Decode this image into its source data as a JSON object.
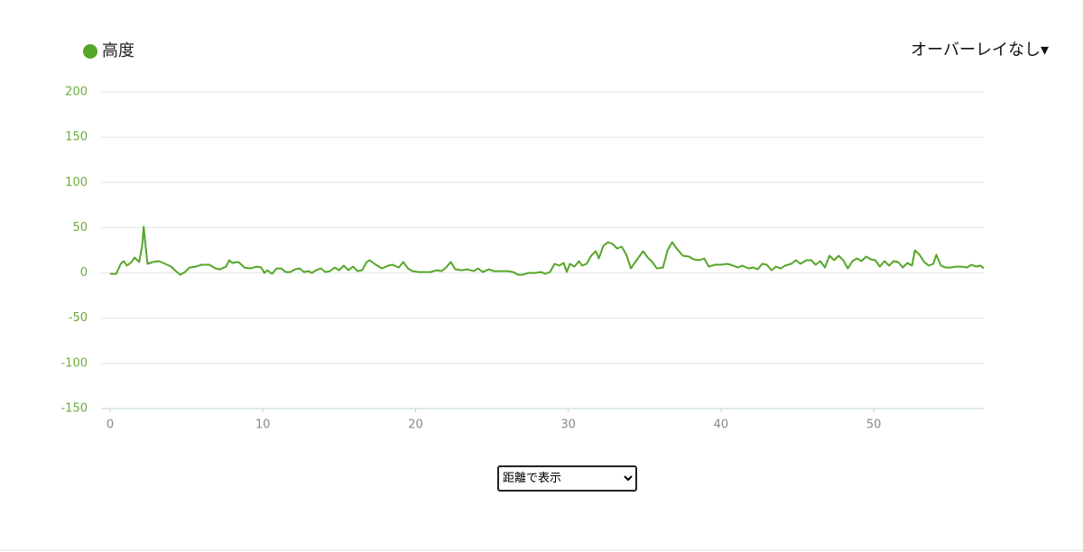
{
  "overlay_menu": "オーバーレイなし▾",
  "view_select": "距離で表示",
  "chart_data": {
    "type": "line",
    "x": [
      0,
      0.4,
      0.7,
      0.9,
      1.1,
      1.4,
      1.6,
      1.9,
      2.1,
      2.2,
      2.35,
      2.45,
      2.8,
      3.2,
      3.6,
      4.0,
      4.3,
      4.6,
      4.9,
      5.2,
      5.6,
      6.0,
      6.5,
      6.9,
      7.2,
      7.6,
      7.8,
      8.0,
      8.4,
      8.8,
      9.2,
      9.6,
      9.9,
      10.1,
      10.3,
      10.6,
      10.9,
      11.2,
      11.5,
      11.8,
      12.1,
      12.4,
      12.7,
      13.0,
      13.2,
      13.5,
      13.8,
      14.1,
      14.4,
      14.7,
      15.0,
      15.3,
      15.6,
      15.9,
      16.2,
      16.5,
      16.8,
      17.0,
      17.4,
      17.8,
      18.2,
      18.5,
      18.9,
      19.2,
      19.5,
      19.8,
      20.2,
      20.6,
      21.0,
      21.4,
      21.7,
      22.0,
      22.3,
      22.6,
      23.0,
      23.4,
      23.8,
      24.1,
      24.4,
      24.8,
      25.1,
      25.6,
      26.0,
      26.4,
      26.7,
      27.0,
      27.4,
      27.8,
      28.2,
      28.5,
      28.8,
      29.1,
      29.4,
      29.7,
      29.9,
      30.1,
      30.4,
      30.7,
      30.9,
      31.2,
      31.5,
      31.8,
      32.0,
      32.3,
      32.6,
      32.9,
      33.2,
      33.5,
      33.8,
      34.1,
      34.3,
      34.6,
      34.9,
      35.2,
      35.5,
      35.8,
      36.2,
      36.5,
      36.8,
      37.1,
      37.5,
      37.9,
      38.2,
      38.6,
      38.9,
      39.2,
      39.6,
      40.0,
      40.4,
      40.8,
      41.1,
      41.4,
      41.8,
      42.1,
      42.4,
      42.7,
      43.0,
      43.3,
      43.6,
      43.9,
      44.2,
      44.6,
      44.9,
      45.2,
      45.6,
      45.9,
      46.2,
      46.5,
      46.8,
      47.1,
      47.4,
      47.7,
      48.0,
      48.3,
      48.6,
      48.9,
      49.2,
      49.5,
      49.8,
      50.1,
      50.4,
      50.7,
      51.0,
      51.3,
      51.6,
      51.9,
      52.2,
      52.5,
      52.7,
      53.0,
      53.3,
      53.6,
      53.9,
      54.1,
      54.4,
      54.7,
      55.0,
      55.4,
      55.8,
      56.1,
      56.4,
      56.7,
      57.0,
      57.2
    ],
    "series": [
      {
        "name": "高度",
        "color": "#55a629",
        "values": [
          -1,
          -1,
          10,
          13,
          8,
          12,
          17,
          12,
          30,
          51,
          25,
          10,
          12,
          13,
          10,
          7,
          2,
          -2,
          1,
          6,
          7,
          9,
          9,
          5,
          4,
          7,
          14,
          11,
          12,
          6,
          5,
          7,
          6,
          0,
          3,
          -1,
          5,
          5,
          1,
          1,
          4,
          5,
          1,
          2,
          0,
          3,
          5,
          1,
          2,
          6,
          3,
          8,
          3,
          7,
          2,
          3,
          12,
          14,
          9,
          5,
          8,
          9,
          6,
          12,
          5,
          2,
          1,
          1,
          1,
          3,
          2,
          6,
          12,
          4,
          3,
          4,
          2,
          5,
          1,
          4,
          2,
          2,
          2,
          1,
          -2,
          -2,
          0,
          0,
          1,
          -1,
          1,
          10,
          8,
          11,
          1,
          10,
          7,
          13,
          8,
          10,
          19,
          24,
          16,
          30,
          34,
          32,
          27,
          29,
          20,
          5,
          10,
          17,
          24,
          17,
          12,
          5,
          6,
          25,
          34,
          27,
          19,
          18,
          15,
          14,
          16,
          7,
          9,
          9,
          10,
          8,
          6,
          8,
          5,
          6,
          4,
          10,
          9,
          3,
          7,
          5,
          8,
          10,
          14,
          10,
          14,
          14,
          9,
          13,
          6,
          19,
          14,
          19,
          14,
          5,
          13,
          16,
          13,
          18,
          15,
          14,
          7,
          13,
          8,
          13,
          12,
          6,
          11,
          8,
          25,
          20,
          12,
          8,
          10,
          20,
          8,
          6,
          6,
          7,
          7,
          6,
          9,
          7,
          8,
          5
        ]
      }
    ],
    "xlim": [
      0,
      57.2
    ],
    "ylim": [
      -150,
      200
    ],
    "xticks": [
      0,
      10,
      20,
      30,
      40,
      50
    ],
    "yticks": [
      -150,
      -100,
      -50,
      0,
      50,
      100,
      150,
      200
    ]
  }
}
